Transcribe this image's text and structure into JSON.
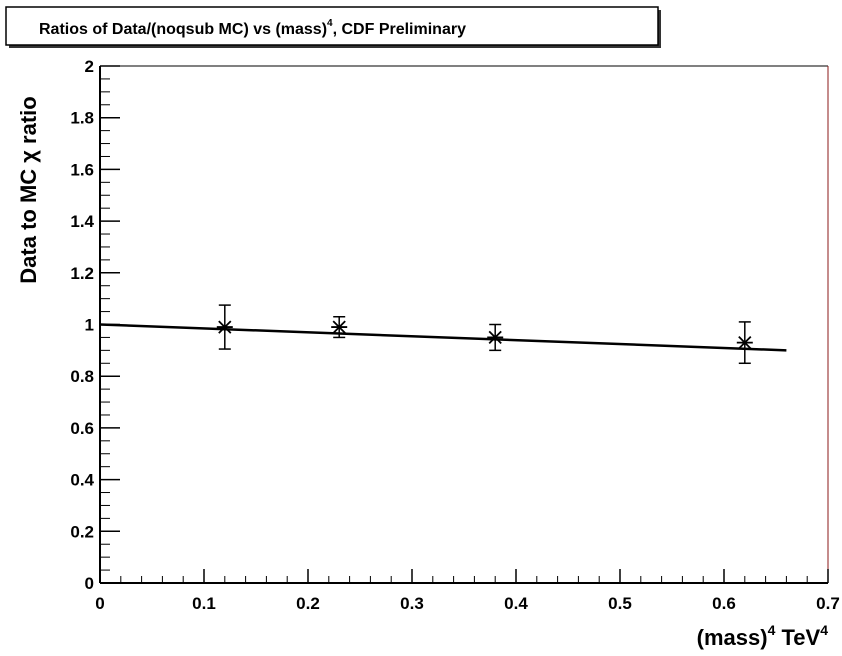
{
  "chart_data": {
    "type": "scatter",
    "title": "Ratios of Data/(noqsub MC) vs (mass)^4, CDF Preliminary",
    "title_parts": {
      "main": "Ratios of Data/(noqsub MC) vs (mass)",
      "exponent": "4",
      "suffix": ", CDF Preliminary"
    },
    "ylabel": "Data to MC χ ratio",
    "xlabel": "(mass)^4 TeV^4",
    "xlabel_parts": {
      "base": "(mass)",
      "exp1": "4",
      "unit": " TeV",
      "exp2": "4"
    },
    "xlim": [
      0,
      0.7
    ],
    "ylim": [
      0,
      2
    ],
    "x_ticks": [
      0,
      0.1,
      0.2,
      0.3,
      0.4,
      0.5,
      0.6,
      0.7
    ],
    "x_tick_labels": [
      "0",
      "0.1",
      "0.2",
      "0.3",
      "0.4",
      "0.5",
      "0.6",
      "0.7"
    ],
    "y_ticks": [
      0,
      0.2,
      0.4,
      0.6,
      0.8,
      1.0,
      1.2,
      1.4,
      1.6,
      1.8,
      2.0
    ],
    "y_tick_labels": [
      "0",
      "0.2",
      "0.4",
      "0.6",
      "0.8",
      "1",
      "1.2",
      "1.4",
      "1.6",
      "1.8",
      "2"
    ],
    "grid": false,
    "series": [
      {
        "points": [
          {
            "x": 0.12,
            "y": 0.99,
            "err": 0.085
          },
          {
            "x": 0.23,
            "y": 0.99,
            "err": 0.04
          },
          {
            "x": 0.38,
            "y": 0.95,
            "err": 0.05
          },
          {
            "x": 0.62,
            "y": 0.93,
            "err": 0.08
          }
        ]
      }
    ],
    "fit_line": {
      "x0": 0,
      "y0": 1.0,
      "x1": 0.66,
      "y1": 0.9
    },
    "colors": {
      "frame": "#000000",
      "frame_right": "#8b1a1a",
      "title_box_shadow": "#333333"
    }
  }
}
